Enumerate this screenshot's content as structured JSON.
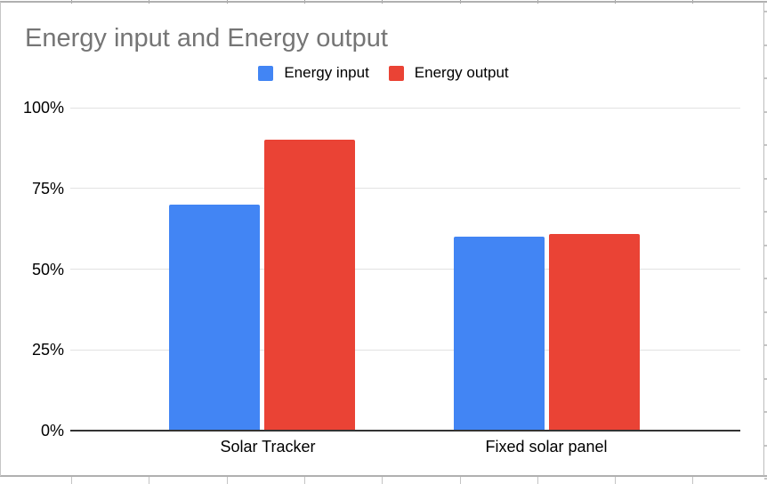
{
  "chart_data": {
    "type": "bar",
    "title": "Energy input and Energy output",
    "categories": [
      "Solar Tracker",
      "Fixed solar panel"
    ],
    "series": [
      {
        "name": "Energy input",
        "color": "#4285F4",
        "values": [
          70,
          60
        ]
      },
      {
        "name": "Energy output",
        "color": "#EA4335",
        "values": [
          90,
          61
        ]
      }
    ],
    "xlabel": "",
    "ylabel": "",
    "y_ticks": [
      "0%",
      "25%",
      "50%",
      "75%",
      "100%"
    ],
    "ylim": [
      0,
      100
    ],
    "grid": true,
    "legend_position": "top",
    "value_format": "percent"
  }
}
